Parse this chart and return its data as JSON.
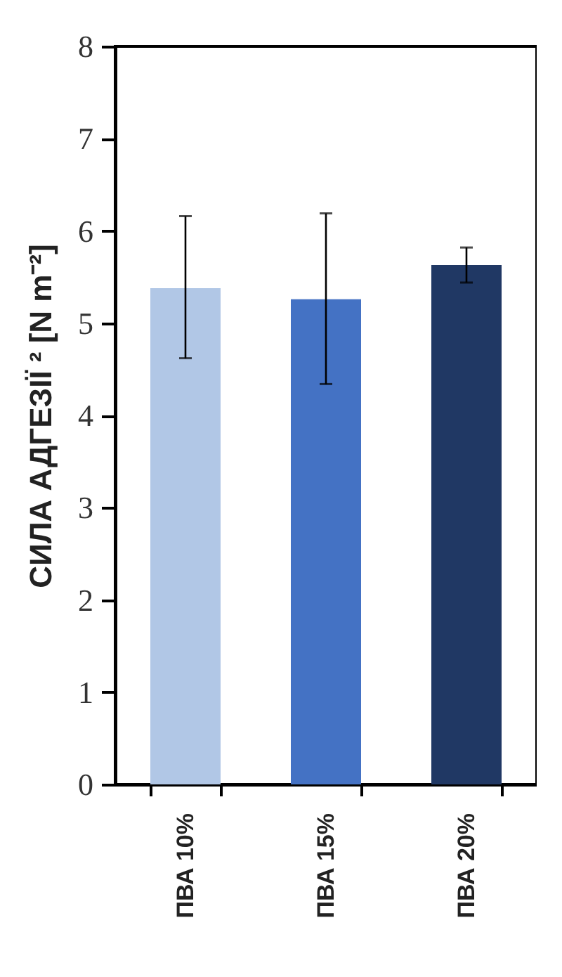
{
  "chart_data": {
    "type": "bar",
    "ylabel": "СИЛА АДГЕЗІЇ ² [N m⁻²]",
    "categories": [
      "ПВА 10%",
      "ПВА 15%",
      "ПВА 20%"
    ],
    "values": [
      5.38,
      5.26,
      5.63
    ],
    "colors": [
      "#b1c7e6",
      "#4472c4",
      "#203864"
    ],
    "errors": [
      [
        4.62,
        6.16
      ],
      [
        4.34,
        6.19
      ],
      [
        5.44,
        5.82
      ]
    ],
    "ylim": [
      0,
      8
    ],
    "yticks": [
      0,
      1,
      2,
      3,
      4,
      5,
      6,
      7,
      8
    ],
    "grid": false,
    "legend": false
  }
}
